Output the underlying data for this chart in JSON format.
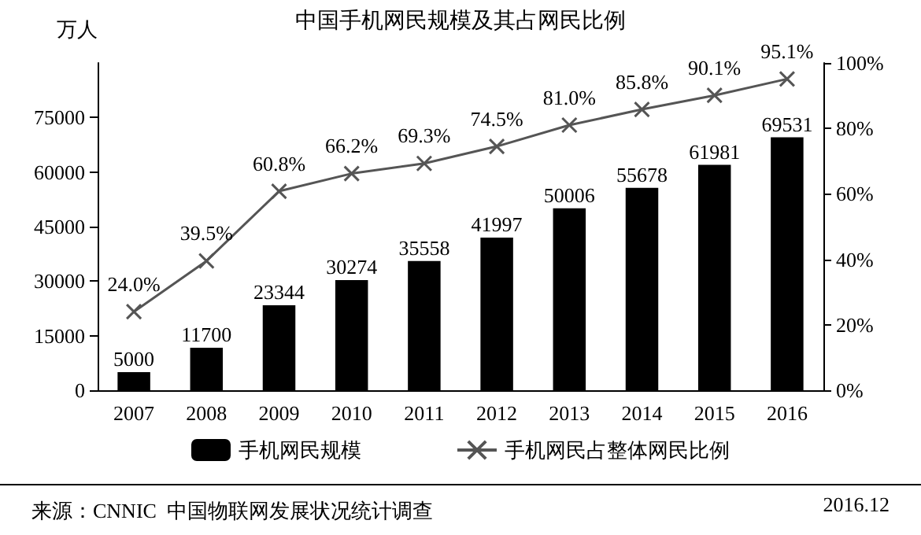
{
  "chart_data": {
    "type": "bar",
    "title": "中国手机网民规模及其占网民比例",
    "ylabel": "万人",
    "categories": [
      "2007",
      "2008",
      "2009",
      "2010",
      "2011",
      "2012",
      "2013",
      "2014",
      "2015",
      "2016"
    ],
    "series": [
      {
        "name": "手机网民规模",
        "color": "#000000",
        "values": [
          5000,
          11700,
          23344,
          30274,
          35558,
          41997,
          50006,
          55678,
          61981,
          69531
        ],
        "data_labels": true
      },
      {
        "name": "手机网民占整体网民比例",
        "type": "line",
        "axis": "y2",
        "color": "#555555",
        "marker": "cross",
        "values": [
          24.0,
          39.5,
          60.8,
          66.2,
          69.3,
          74.5,
          81.0,
          85.8,
          90.1,
          95.1
        ],
        "value_labels": [
          "24.0%",
          "39.5%",
          "60.8%",
          "66.2%",
          "69.3%",
          "74.5%",
          "81.0%",
          "85.8%",
          "90.1%",
          "95.1%"
        ]
      }
    ],
    "ylim": [
      0,
      90000
    ],
    "yticks": [
      0,
      15000,
      30000,
      45000,
      60000,
      75000
    ],
    "y2lim": [
      0,
      100
    ],
    "y2ticks": [
      {
        "value": 0,
        "label": "0%"
      },
      {
        "value": 20,
        "label": "20%"
      },
      {
        "value": 40,
        "label": "40%"
      },
      {
        "value": 60,
        "label": "60%"
      },
      {
        "value": 80,
        "label": "80%"
      },
      {
        "value": 100,
        "label": "100%"
      }
    ],
    "legend": "bottom",
    "grid": false,
    "annotations": [
      "来源：CNNIC  中国物联网发展状况统计调查",
      "2016.12"
    ]
  }
}
